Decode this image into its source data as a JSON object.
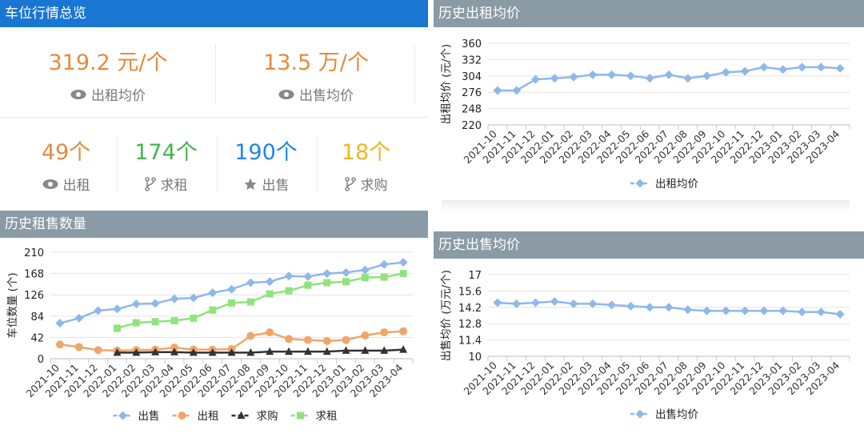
{
  "overview": {
    "title": "车位行情总览",
    "rent_avg": {
      "value": "319.2 元/个",
      "label": "出租均价",
      "color": "#e8893b"
    },
    "sale_avg": {
      "value": "13.5 万/个",
      "label": "出售均价",
      "color": "#e8893b"
    },
    "counts": [
      {
        "value": "49个",
        "label": "出租",
        "color": "#e8893b",
        "icon": "eye-icon"
      },
      {
        "value": "174个",
        "label": "求租",
        "color": "#43b54a",
        "icon": "fork-icon"
      },
      {
        "value": "190个",
        "label": "出售",
        "color": "#1e88e5",
        "icon": "star-icon"
      },
      {
        "value": "18个",
        "label": "求购",
        "color": "#f2b51c",
        "icon": "fork-icon"
      }
    ]
  },
  "chart_data": [
    {
      "id": "rent-price",
      "type": "line",
      "title": "历史出租均价",
      "ylabel": "出租均价 (元/个)",
      "ylim": [
        220,
        360
      ],
      "yticks": [
        220,
        248,
        276,
        304,
        332,
        360
      ],
      "categories": [
        "2021-10",
        "2021-11",
        "2021-12",
        "2022-01",
        "2022-02",
        "2022-03",
        "2022-04",
        "2022-05",
        "2022-06",
        "2022-07",
        "2022-08",
        "2022-09",
        "2022-10",
        "2022-11",
        "2022-12",
        "2023-01",
        "2023-02",
        "2023-03",
        "2023-04"
      ],
      "series": [
        {
          "name": "出租均价",
          "color": "#8fb8ea",
          "values": [
            279,
            279,
            298,
            300,
            302,
            306,
            306,
            304,
            300,
            306,
            300,
            304,
            310,
            312,
            319,
            315,
            319,
            319,
            317
          ]
        }
      ],
      "legend": "bottom"
    },
    {
      "id": "volume",
      "type": "line",
      "title": "历史租售数量",
      "ylabel": "车位数量 (个)",
      "ylim": [
        0,
        210
      ],
      "yticks": [
        0,
        42,
        84,
        126,
        168,
        210
      ],
      "categories": [
        "2021-10",
        "2021-11",
        "2021-12",
        "2022-01",
        "2022-02",
        "2022-03",
        "2022-04",
        "2022-05",
        "2022-06",
        "2022-07",
        "2022-08",
        "2022-09",
        "2022-10",
        "2022-11",
        "2022-12",
        "2023-01",
        "2023-02",
        "2023-03",
        "2023-04"
      ],
      "series": [
        {
          "name": "出售",
          "color": "#8fb8ea",
          "marker": "diamond",
          "values": [
            70,
            80,
            95,
            98,
            108,
            109,
            118,
            120,
            130,
            137,
            150,
            152,
            163,
            162,
            168,
            170,
            175,
            186,
            190
          ]
        },
        {
          "name": "出租",
          "color": "#f0a66a",
          "marker": "circle",
          "values": [
            28,
            23,
            17,
            16,
            17,
            18,
            22,
            18,
            18,
            19,
            45,
            52,
            39,
            37,
            35,
            37,
            46,
            52,
            54
          ]
        },
        {
          "name": "求购",
          "color": "#333333",
          "marker": "triangle",
          "values": [
            null,
            null,
            null,
            12,
            12,
            13,
            13,
            12,
            12,
            12,
            12,
            14,
            14,
            14,
            14,
            16,
            16,
            16,
            18
          ]
        },
        {
          "name": "求租",
          "color": "#90e37d",
          "marker": "square",
          "values": [
            null,
            null,
            null,
            60,
            71,
            73,
            75,
            80,
            96,
            110,
            112,
            128,
            134,
            145,
            150,
            152,
            160,
            161,
            168
          ]
        }
      ],
      "legend": "bottom"
    },
    {
      "id": "sale-price",
      "type": "line",
      "title": "历史出售均价",
      "ylabel": "出售均价 (万元/个)",
      "ylim": [
        10,
        17
      ],
      "yticks": [
        10,
        11.4,
        12.8,
        14.2,
        15.6,
        17
      ],
      "categories": [
        "2021-10",
        "2021-11",
        "2021-12",
        "2022-01",
        "2022-02",
        "2022-03",
        "2022-04",
        "2022-05",
        "2022-06",
        "2022-07",
        "2022-08",
        "2022-09",
        "2022-10",
        "2022-11",
        "2022-12",
        "2023-01",
        "2023-02",
        "2023-03",
        "2023-04"
      ],
      "series": [
        {
          "name": "出售均价",
          "color": "#8fb8ea",
          "values": [
            14.6,
            14.5,
            14.6,
            14.7,
            14.5,
            14.5,
            14.4,
            14.3,
            14.2,
            14.2,
            14.0,
            13.9,
            13.9,
            13.9,
            13.9,
            13.9,
            13.8,
            13.8,
            13.6
          ]
        }
      ],
      "legend": "bottom"
    }
  ]
}
